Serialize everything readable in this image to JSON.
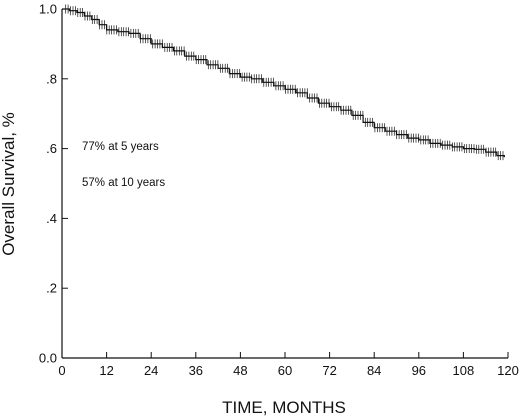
{
  "chart_data": {
    "type": "line",
    "xlabel": "TIME, MONTHS",
    "ylabel": "Overall Survival, %",
    "xlim": [
      0,
      120
    ],
    "ylim": [
      0.0,
      1.0
    ],
    "x_ticks": [
      0,
      12,
      24,
      36,
      48,
      60,
      72,
      84,
      96,
      108,
      120
    ],
    "x_tick_labels": [
      "0",
      "12",
      "24",
      "36",
      "48",
      "60",
      "72",
      "84",
      "96",
      "108",
      "120"
    ],
    "y_ticks": [
      0.0,
      0.2,
      0.4,
      0.6,
      0.8,
      1.0
    ],
    "y_tick_labels": [
      "0.0",
      ".2",
      ".4",
      ".6",
      ".8",
      "1.0"
    ],
    "grid": false,
    "annotations": [
      "77% at 5 years",
      "57% at 10 years"
    ],
    "series": [
      {
        "style": "kaplan-meier step curve with censor tick marks",
        "color": "#111111",
        "x": [
          0,
          2,
          4,
          6,
          8,
          10,
          12,
          15,
          18,
          21,
          24,
          27,
          30,
          33,
          36,
          39,
          42,
          45,
          48,
          51,
          54,
          57,
          60,
          63,
          66,
          69,
          72,
          75,
          78,
          81,
          84,
          87,
          90,
          93,
          96,
          99,
          102,
          105,
          108,
          111,
          114,
          117,
          119
        ],
        "y": [
          1.0,
          0.995,
          0.99,
          0.98,
          0.97,
          0.955,
          0.94,
          0.935,
          0.93,
          0.915,
          0.9,
          0.89,
          0.88,
          0.865,
          0.855,
          0.84,
          0.83,
          0.815,
          0.805,
          0.8,
          0.79,
          0.78,
          0.77,
          0.76,
          0.745,
          0.73,
          0.72,
          0.71,
          0.695,
          0.675,
          0.66,
          0.65,
          0.64,
          0.63,
          0.625,
          0.615,
          0.61,
          0.605,
          0.6,
          0.598,
          0.59,
          0.58,
          0.575
        ]
      }
    ]
  }
}
